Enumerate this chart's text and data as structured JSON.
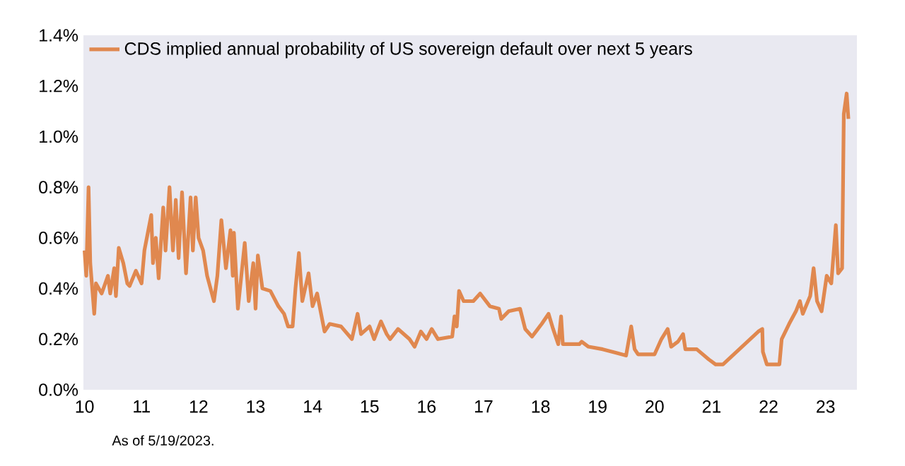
{
  "chart_data": {
    "type": "line",
    "series": [
      {
        "name": "CDS implied annual probability of US sovereign default over next 5 years",
        "color": "#e0884f",
        "x": [
          10.0,
          10.03,
          10.07,
          10.1,
          10.17,
          10.2,
          10.3,
          10.41,
          10.45,
          10.52,
          10.55,
          10.6,
          10.68,
          10.75,
          10.79,
          10.9,
          11.0,
          11.05,
          11.17,
          11.2,
          11.25,
          11.3,
          11.38,
          11.42,
          11.49,
          11.55,
          11.6,
          11.65,
          11.71,
          11.78,
          11.86,
          11.9,
          11.95,
          12.0,
          12.08,
          12.15,
          12.27,
          12.33,
          12.4,
          12.48,
          12.56,
          12.6,
          12.62,
          12.69,
          12.81,
          12.88,
          12.96,
          13.0,
          13.04,
          13.12,
          13.26,
          13.4,
          13.5,
          13.57,
          13.65,
          13.7,
          13.76,
          13.82,
          13.93,
          14.0,
          14.08,
          14.21,
          14.3,
          14.5,
          14.69,
          14.79,
          14.85,
          15.0,
          15.08,
          15.2,
          15.3,
          15.36,
          15.5,
          15.7,
          15.79,
          15.9,
          16.0,
          16.09,
          16.2,
          16.45,
          16.49,
          16.53,
          16.57,
          16.65,
          16.82,
          16.94,
          17.11,
          17.27,
          17.31,
          17.44,
          17.64,
          17.73,
          17.85,
          18.02,
          18.14,
          18.22,
          18.31,
          18.36,
          18.39,
          18.68,
          18.72,
          18.84,
          19.09,
          19.34,
          19.5,
          19.59,
          19.65,
          19.71,
          20.0,
          20.12,
          20.23,
          20.29,
          20.41,
          20.5,
          20.54,
          20.74,
          20.95,
          21.07,
          21.2,
          21.82,
          21.89,
          21.9,
          21.97,
          22.19,
          22.23,
          22.36,
          22.48,
          22.55,
          22.6,
          22.73,
          22.79,
          22.85,
          22.93,
          23.02,
          23.1,
          23.18,
          23.22,
          23.29,
          23.32,
          23.37,
          23.4
        ],
        "values": [
          0.55,
          0.45,
          0.8,
          0.5,
          0.3,
          0.42,
          0.38,
          0.45,
          0.38,
          0.48,
          0.37,
          0.56,
          0.5,
          0.42,
          0.41,
          0.47,
          0.42,
          0.55,
          0.69,
          0.5,
          0.6,
          0.44,
          0.72,
          0.55,
          0.8,
          0.55,
          0.75,
          0.52,
          0.78,
          0.46,
          0.76,
          0.55,
          0.76,
          0.6,
          0.55,
          0.45,
          0.35,
          0.45,
          0.67,
          0.48,
          0.63,
          0.45,
          0.62,
          0.32,
          0.58,
          0.35,
          0.5,
          0.32,
          0.53,
          0.4,
          0.39,
          0.33,
          0.3,
          0.25,
          0.25,
          0.4,
          0.54,
          0.35,
          0.46,
          0.33,
          0.38,
          0.23,
          0.26,
          0.25,
          0.2,
          0.3,
          0.22,
          0.25,
          0.2,
          0.27,
          0.22,
          0.2,
          0.24,
          0.2,
          0.17,
          0.23,
          0.2,
          0.24,
          0.2,
          0.21,
          0.29,
          0.25,
          0.39,
          0.35,
          0.35,
          0.38,
          0.33,
          0.32,
          0.28,
          0.31,
          0.32,
          0.24,
          0.21,
          0.26,
          0.3,
          0.24,
          0.18,
          0.29,
          0.18,
          0.18,
          0.19,
          0.17,
          0.16,
          0.145,
          0.135,
          0.25,
          0.16,
          0.14,
          0.14,
          0.2,
          0.24,
          0.17,
          0.19,
          0.22,
          0.16,
          0.16,
          0.12,
          0.1,
          0.1,
          0.23,
          0.24,
          0.15,
          0.1,
          0.1,
          0.2,
          0.26,
          0.31,
          0.35,
          0.3,
          0.37,
          0.48,
          0.35,
          0.31,
          0.45,
          0.42,
          0.65,
          0.46,
          0.48,
          1.09,
          1.17,
          1.07
        ]
      }
    ],
    "xlim": [
      9.98,
      23.55
    ],
    "xticks": [
      10,
      11,
      12,
      13,
      14,
      15,
      16,
      17,
      18,
      19,
      20,
      21,
      22,
      23
    ],
    "ylim": [
      0,
      1.4
    ],
    "yticks": [
      {
        "value": 0,
        "label": "0.0%"
      },
      {
        "value": 0.2,
        "label": "0.2%"
      },
      {
        "value": 0.4,
        "label": "0.4%"
      },
      {
        "value": 0.6,
        "label": "0.6%"
      },
      {
        "value": 0.8,
        "label": "0.8%"
      },
      {
        "value": 1.0,
        "label": "1.0%"
      },
      {
        "value": 1.2,
        "label": "1.2%"
      },
      {
        "value": 1.4,
        "label": "1.4%"
      }
    ],
    "legend": "top left",
    "grid": false,
    "marker": "none",
    "line_style": "solid",
    "annotations": [
      "As of 5/19/2023."
    ]
  }
}
